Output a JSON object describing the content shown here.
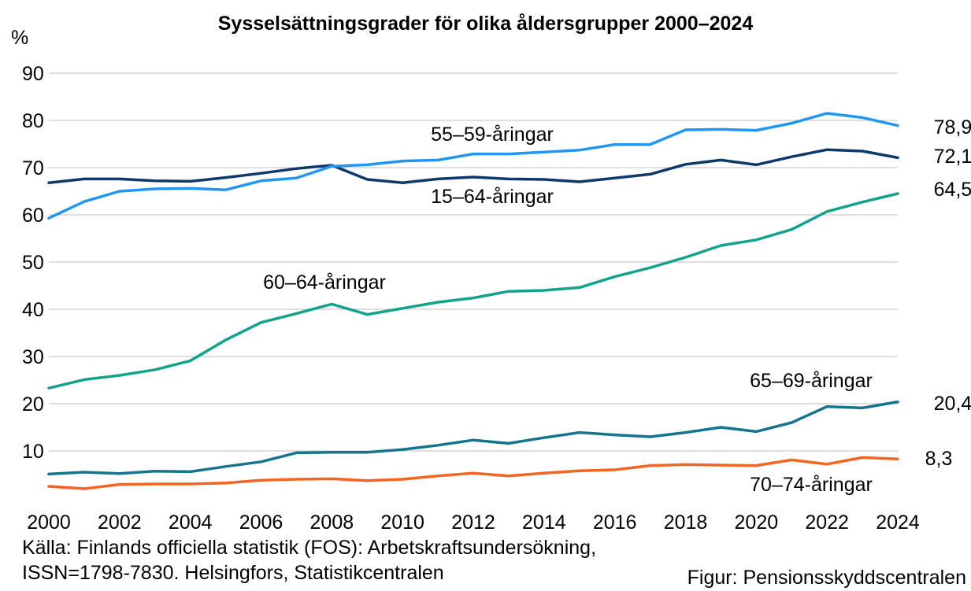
{
  "chart_data": {
    "type": "line",
    "title": "Sysselsättningsgrader för olika åldersgrupper 2000–2024",
    "ylabel": "%",
    "xlim": [
      2000,
      2024
    ],
    "ylim": [
      0,
      90
    ],
    "yticks": [
      10,
      20,
      30,
      40,
      50,
      60,
      70,
      80,
      90
    ],
    "xticks": [
      2000,
      2002,
      2004,
      2006,
      2008,
      2010,
      2012,
      2014,
      2016,
      2018,
      2020,
      2022,
      2024
    ],
    "grid": true,
    "x": [
      2000,
      2001,
      2002,
      2003,
      2004,
      2005,
      2006,
      2007,
      2008,
      2009,
      2010,
      2011,
      2012,
      2013,
      2014,
      2015,
      2016,
      2017,
      2018,
      2019,
      2020,
      2021,
      2022,
      2023,
      2024
    ],
    "series": [
      {
        "name": "15–64-åringar",
        "color": "#0d3a6b",
        "end_label": "72,1",
        "values": [
          66.8,
          67.6,
          67.6,
          67.2,
          67.1,
          67.9,
          68.8,
          69.8,
          70.5,
          67.5,
          66.8,
          67.6,
          68.0,
          67.6,
          67.5,
          67.0,
          67.8,
          68.6,
          70.7,
          71.6,
          70.6,
          72.3,
          73.8,
          73.5,
          72.1
        ]
      },
      {
        "name": "55–59-åringar",
        "color": "#2196f3",
        "end_label": "78,9",
        "values": [
          59.3,
          62.8,
          65.0,
          65.5,
          65.6,
          65.3,
          67.2,
          67.8,
          70.3,
          70.6,
          71.4,
          71.6,
          72.9,
          72.9,
          73.3,
          73.7,
          74.9,
          74.9,
          78.0,
          78.1,
          77.9,
          79.4,
          81.5,
          80.6,
          78.9
        ]
      },
      {
        "name": "60–64-åringar",
        "color": "#12a38a",
        "end_label": "64,5",
        "values": [
          23.3,
          25.1,
          26.0,
          27.2,
          29.1,
          33.5,
          37.2,
          39.1,
          41.1,
          38.9,
          40.2,
          41.5,
          42.4,
          43.8,
          44.0,
          44.6,
          46.9,
          48.8,
          51.0,
          53.5,
          54.7,
          56.9,
          60.7,
          62.7,
          64.5
        ]
      },
      {
        "name": "65–69-åringar",
        "color": "#15758e",
        "end_label": "20,4",
        "values": [
          5.1,
          5.5,
          5.2,
          5.7,
          5.6,
          6.7,
          7.7,
          9.6,
          9.7,
          9.7,
          10.3,
          11.2,
          12.3,
          11.6,
          12.8,
          13.9,
          13.4,
          13.0,
          13.9,
          15.0,
          14.1,
          16.0,
          19.4,
          19.1,
          20.4
        ]
      },
      {
        "name": "70–74-åringar",
        "color": "#f26522",
        "end_label": "8,3",
        "values": [
          2.5,
          2.0,
          2.9,
          3.0,
          3.0,
          3.2,
          3.8,
          4.0,
          4.1,
          3.7,
          4.0,
          4.7,
          5.3,
          4.7,
          5.3,
          5.8,
          6.0,
          6.9,
          7.1,
          7.0,
          6.9,
          8.1,
          7.2,
          8.6,
          8.3
        ]
      }
    ]
  },
  "source": {
    "line1": "Källa: Finlands officiella statistik (FOS): Arbetskraftsundersökning,",
    "line2": "ISSN=1798-7830. Helsingfors, Statistikcentralen"
  },
  "figure_credit": "Figur: Pensionsskyddscentralen"
}
